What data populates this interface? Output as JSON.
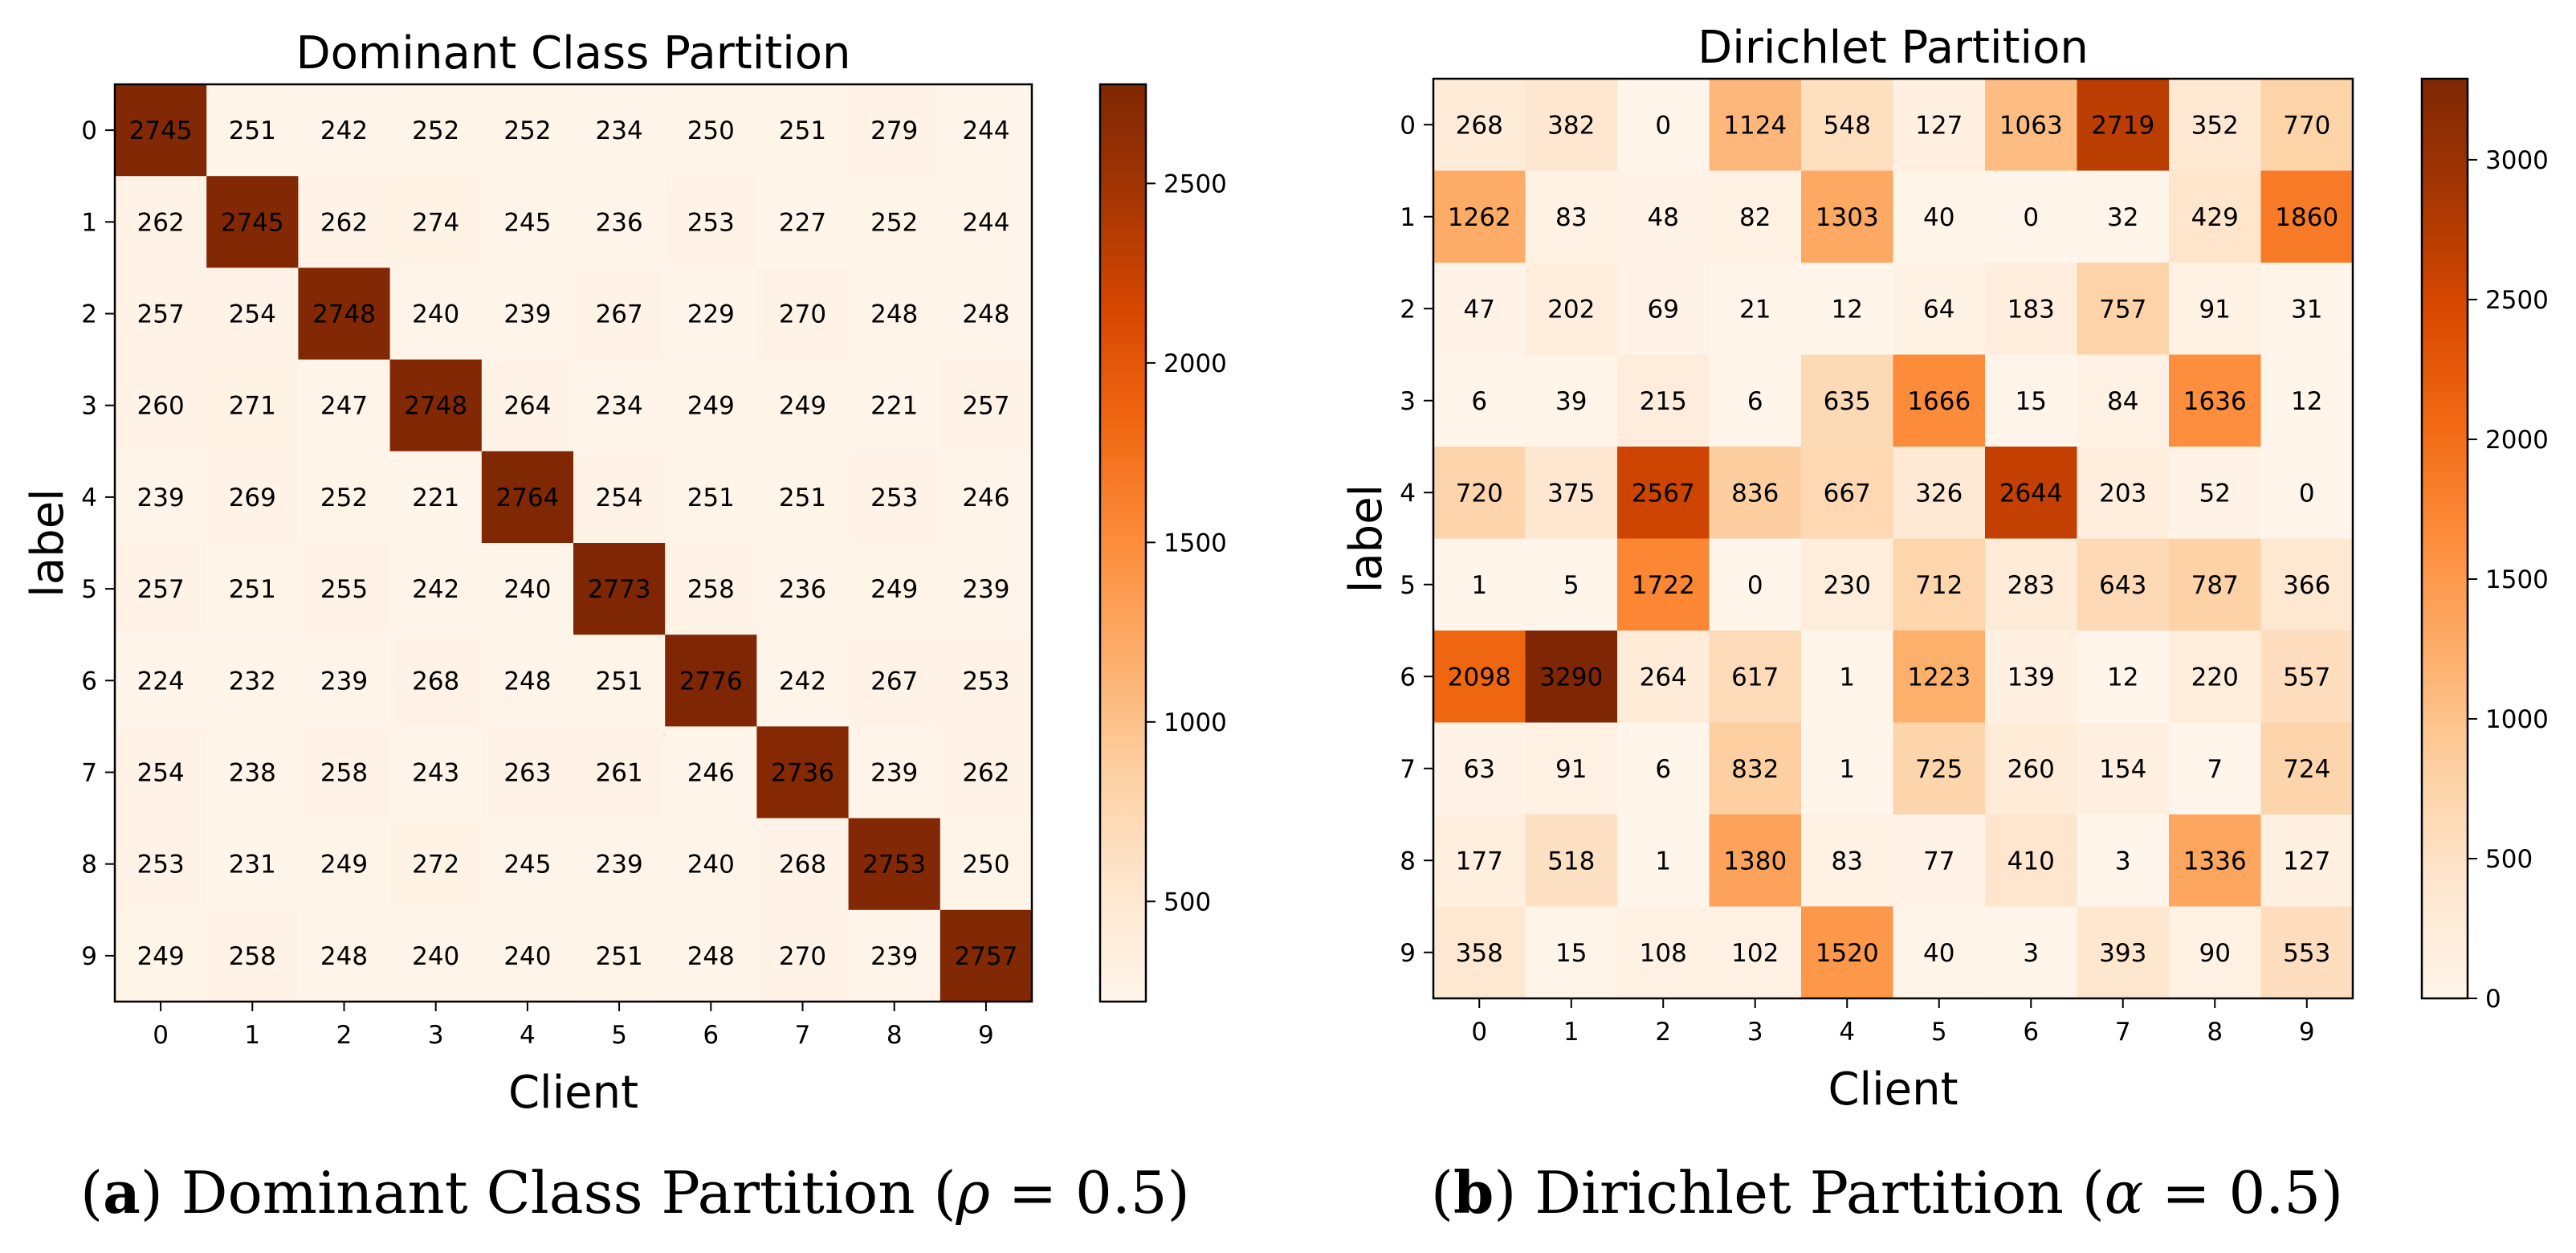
{
  "chart_data": [
    {
      "type": "heatmap",
      "title": "Dominant Class Partition",
      "xlabel": "Client",
      "ylabel": "label",
      "x": [
        "0",
        "1",
        "2",
        "3",
        "4",
        "5",
        "6",
        "7",
        "8",
        "9"
      ],
      "y": [
        "0",
        "1",
        "2",
        "3",
        "4",
        "5",
        "6",
        "7",
        "8",
        "9"
      ],
      "values": [
        [
          2745,
          251,
          242,
          252,
          252,
          234,
          250,
          251,
          279,
          244
        ],
        [
          262,
          2745,
          262,
          274,
          245,
          236,
          253,
          227,
          252,
          244
        ],
        [
          257,
          254,
          2748,
          240,
          239,
          267,
          229,
          270,
          248,
          248
        ],
        [
          260,
          271,
          247,
          2748,
          264,
          234,
          249,
          249,
          221,
          257
        ],
        [
          239,
          269,
          252,
          221,
          2764,
          254,
          251,
          251,
          253,
          246
        ],
        [
          257,
          251,
          255,
          242,
          240,
          2773,
          258,
          236,
          249,
          239
        ],
        [
          224,
          232,
          239,
          268,
          248,
          251,
          2776,
          242,
          267,
          253
        ],
        [
          254,
          238,
          258,
          243,
          263,
          261,
          246,
          2736,
          239,
          262
        ],
        [
          253,
          231,
          249,
          272,
          245,
          239,
          240,
          268,
          2753,
          250
        ],
        [
          249,
          258,
          248,
          240,
          240,
          251,
          248,
          270,
          239,
          2757
        ]
      ],
      "colorbar": {
        "vmin": 221,
        "vmax": 2776,
        "ticks": [
          500,
          1000,
          1500,
          2000,
          2500
        ],
        "colormap": "Oranges"
      },
      "caption": {
        "letter": "a",
        "text": "Dominant Class Partition",
        "param": "ρ",
        "value": "0.5"
      }
    },
    {
      "type": "heatmap",
      "title": "Dirichlet Partition",
      "xlabel": "Client",
      "ylabel": "label",
      "x": [
        "0",
        "1",
        "2",
        "3",
        "4",
        "5",
        "6",
        "7",
        "8",
        "9"
      ],
      "y": [
        "0",
        "1",
        "2",
        "3",
        "4",
        "5",
        "6",
        "7",
        "8",
        "9"
      ],
      "values": [
        [
          268,
          382,
          0,
          1124,
          548,
          127,
          1063,
          2719,
          352,
          770
        ],
        [
          1262,
          83,
          48,
          82,
          1303,
          40,
          0,
          32,
          429,
          1860
        ],
        [
          47,
          202,
          69,
          21,
          12,
          64,
          183,
          757,
          91,
          31
        ],
        [
          6,
          39,
          215,
          6,
          635,
          1666,
          15,
          84,
          1636,
          12
        ],
        [
          720,
          375,
          2567,
          836,
          667,
          326,
          2644,
          203,
          52,
          0
        ],
        [
          1,
          5,
          1722,
          0,
          230,
          712,
          283,
          643,
          787,
          366
        ],
        [
          2098,
          3290,
          264,
          617,
          1,
          1223,
          139,
          12,
          220,
          557
        ],
        [
          63,
          91,
          6,
          832,
          1,
          725,
          260,
          154,
          7,
          724
        ],
        [
          177,
          518,
          1,
          1380,
          83,
          77,
          410,
          3,
          1336,
          127
        ],
        [
          358,
          15,
          108,
          102,
          1520,
          40,
          3,
          393,
          90,
          553
        ]
      ],
      "colorbar": {
        "vmin": 0,
        "vmax": 3290,
        "ticks": [
          0,
          500,
          1000,
          1500,
          2000,
          2500,
          3000
        ],
        "colormap": "Oranges"
      },
      "caption": {
        "letter": "b",
        "text": "Dirichlet Partition",
        "param": "α",
        "value": "0.5"
      }
    }
  ]
}
